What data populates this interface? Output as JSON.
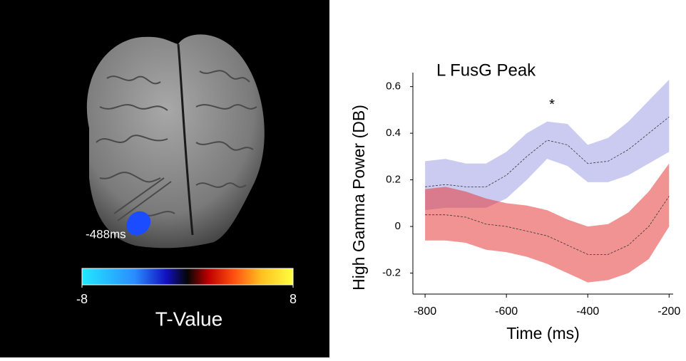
{
  "brain_panel": {
    "time_label": "-488ms",
    "colorbar": {
      "label": "T-Value",
      "lim": [
        -8,
        8
      ],
      "ticks": [
        -8,
        8
      ]
    }
  },
  "chart_data": {
    "type": "line",
    "title": "L FusG Peak",
    "x_label": "Time (ms)",
    "y_label": "High Gamma Power (DB)",
    "x": [
      -800,
      -750,
      -700,
      -650,
      -600,
      -550,
      -500,
      -450,
      -400,
      -350,
      -300,
      -250,
      -200
    ],
    "series": [
      {
        "color": "#6b6bd8",
        "values": [
          0.17,
          0.18,
          0.17,
          0.17,
          0.22,
          0.3,
          0.37,
          0.35,
          0.27,
          0.28,
          0.33,
          0.4,
          0.47
        ],
        "upper": [
          0.28,
          0.29,
          0.27,
          0.27,
          0.32,
          0.4,
          0.45,
          0.44,
          0.35,
          0.38,
          0.45,
          0.54,
          0.63
        ],
        "lower": [
          0.07,
          0.08,
          0.08,
          0.08,
          0.12,
          0.2,
          0.29,
          0.26,
          0.19,
          0.19,
          0.22,
          0.27,
          0.32
        ]
      },
      {
        "color": "#e83a3a",
        "values": [
          0.05,
          0.05,
          0.04,
          0.01,
          0.0,
          -0.02,
          -0.04,
          -0.08,
          -0.12,
          -0.12,
          -0.08,
          0.0,
          0.13
        ],
        "upper": [
          0.16,
          0.17,
          0.15,
          0.12,
          0.1,
          0.09,
          0.07,
          0.03,
          0.0,
          0.01,
          0.06,
          0.15,
          0.27
        ],
        "lower": [
          -0.06,
          -0.06,
          -0.07,
          -0.1,
          -0.11,
          -0.13,
          -0.16,
          -0.2,
          -0.24,
          -0.23,
          -0.2,
          -0.14,
          0.0
        ]
      }
    ],
    "annotation": {
      "text": "*",
      "x": -488,
      "y": 0.52
    },
    "xlim": [
      -830,
      -190
    ],
    "xticks": [
      -800,
      -600,
      -400,
      -200
    ],
    "ylim": [
      -0.29,
      0.66
    ],
    "yticks": [
      -0.2,
      0,
      0.2,
      0.4,
      0.6
    ]
  }
}
